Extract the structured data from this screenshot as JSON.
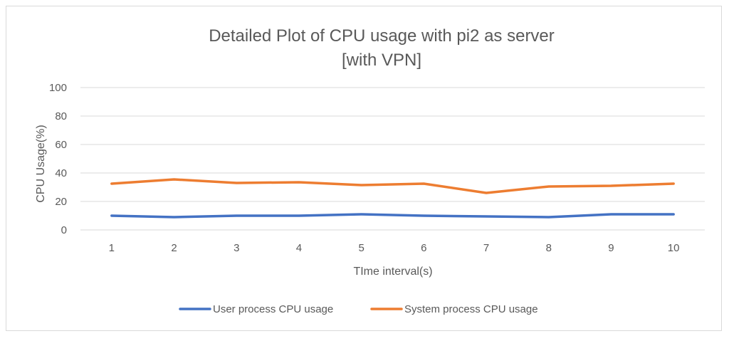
{
  "chart_data": {
    "type": "line",
    "title_lines": [
      "Detailed Plot of CPU usage with pi2 as server",
      "[with VPN]"
    ],
    "xlabel": "TIme interval(s)",
    "ylabel": "CPU Usage(%)",
    "x": [
      1,
      2,
      3,
      4,
      5,
      6,
      7,
      8,
      9,
      10
    ],
    "ylim": [
      0,
      100
    ],
    "yticks": [
      0,
      20,
      40,
      60,
      80,
      100
    ],
    "grid": true,
    "legend_position": "bottom",
    "series": [
      {
        "name": "User process CPU usage",
        "color": "#4472c4",
        "values": [
          10,
          9,
          10,
          10,
          11,
          10,
          9.5,
          9,
          11,
          11
        ]
      },
      {
        "name": "System process CPU usage",
        "color": "#ed7d31",
        "values": [
          32.5,
          35.5,
          33,
          33.5,
          31.5,
          32.5,
          26,
          30.5,
          31,
          32.5
        ]
      }
    ]
  }
}
